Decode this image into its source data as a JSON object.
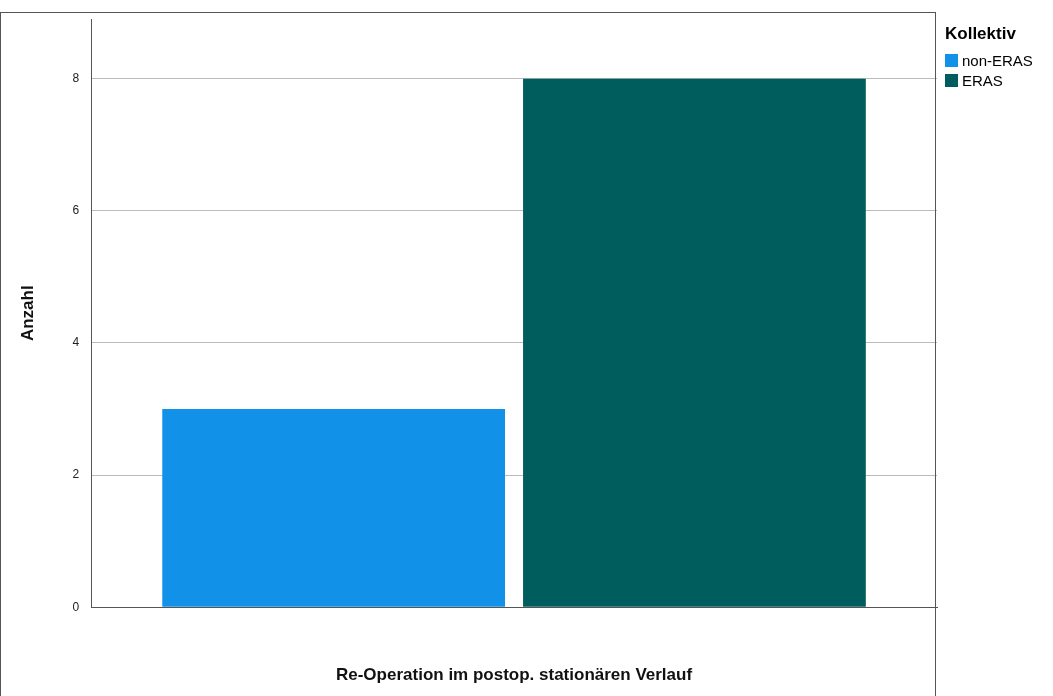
{
  "chart_data": {
    "type": "bar",
    "xlabel": "Re-Operation im postop. stationären Verlauf",
    "ylabel": "Anzahl",
    "legend_title": "Kollektiv",
    "categories": [
      null
    ],
    "series": [
      {
        "name": "non-ERAS",
        "color": "#1192e8",
        "values": [
          3
        ]
      },
      {
        "name": "ERAS",
        "color": "#005d5d",
        "values": [
          8
        ]
      }
    ],
    "ylim": [
      0,
      8.9
    ],
    "yticks": [
      0,
      2,
      4,
      6,
      8
    ],
    "grid": "y",
    "legend": "top right"
  }
}
